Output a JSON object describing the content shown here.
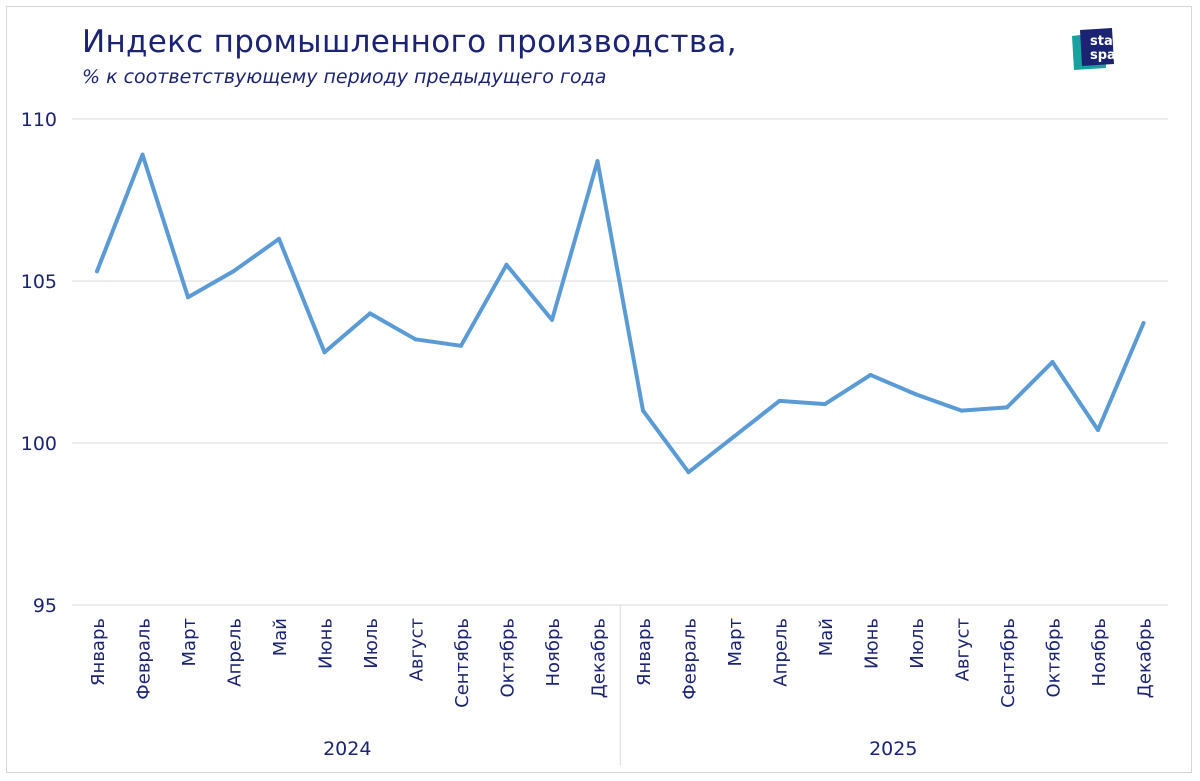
{
  "title": "Индекс промышленного производства,",
  "subtitle": "% к соответствующему периоду предыдущего года",
  "logo": {
    "line1": "stat",
    "line2": "space"
  },
  "colors": {
    "line": "#5b9bd5",
    "title": "#1b2473",
    "grid": "#d9d9d9",
    "axis_text": "#1b2473",
    "logo_teal": "#17a2a0",
    "logo_navy": "#1b2473"
  },
  "chart_data": {
    "type": "line",
    "title": "Индекс промышленного производства,",
    "subtitle": "% к соответствующему периоду предыдущего года",
    "xlabel": "",
    "ylabel": "",
    "ylim": [
      95,
      110
    ],
    "yticks": [
      95,
      100,
      105,
      110
    ],
    "grid": true,
    "groups": [
      "2024",
      "2025"
    ],
    "categories": [
      "Январь",
      "Февраль",
      "Март",
      "Апрель",
      "Май",
      "Июнь",
      "Июль",
      "Август",
      "Сентябрь",
      "Октябрь",
      "Ноябрь",
      "Декабрь",
      "Январь",
      "Февраль",
      "Март",
      "Апрель",
      "Май",
      "Июнь",
      "Июль",
      "Август",
      "Сентябрь",
      "Октябрь",
      "Ноябрь",
      "Декабрь"
    ],
    "series": [
      {
        "values": [
          105.3,
          108.9,
          104.5,
          105.3,
          106.3,
          102.8,
          104.0,
          103.2,
          103.0,
          105.5,
          103.8,
          108.7,
          101.0,
          99.1,
          100.2,
          101.3,
          101.2,
          102.1,
          101.5,
          101.0,
          101.1,
          102.5,
          100.4,
          103.7
        ]
      }
    ]
  }
}
